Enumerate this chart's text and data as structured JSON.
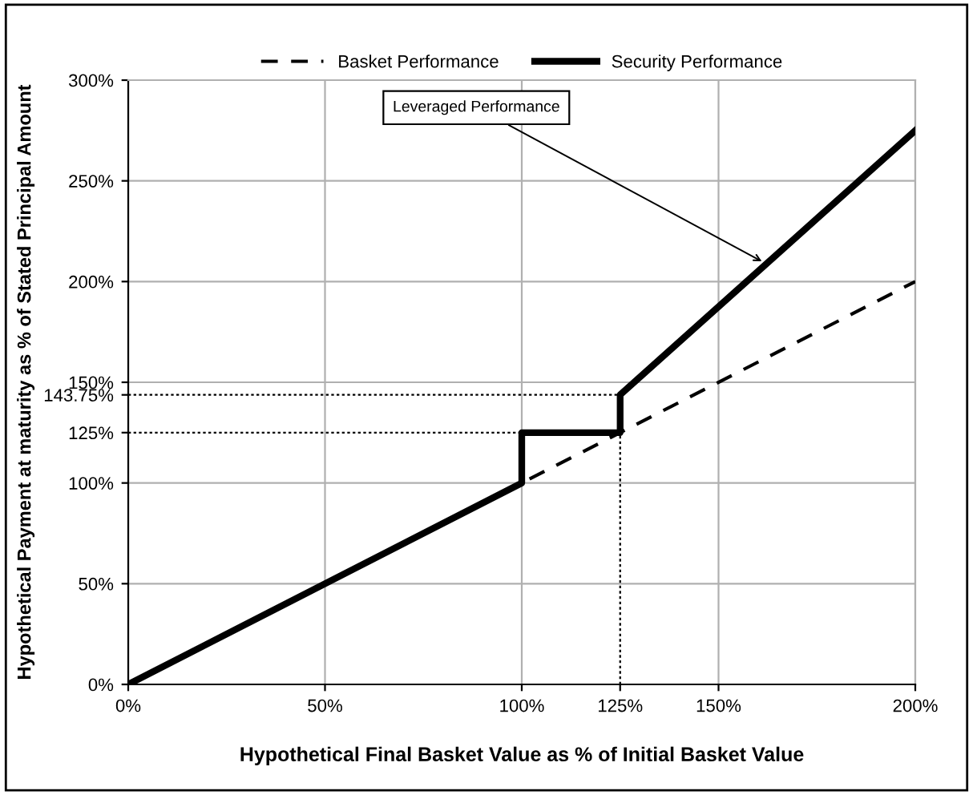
{
  "chart_data": {
    "type": "line",
    "xlabel": "Hypothetical Final Basket Value as % of Initial Basket Value",
    "ylabel": "Hypothetical Payment at maturity as % of Stated Principal Amount",
    "series": [
      {
        "name": "Basket Performance",
        "color": "#000000",
        "line_style": "dashed",
        "x": [
          0,
          200
        ],
        "values": [
          0,
          200
        ]
      },
      {
        "name": "Security Performance",
        "color": "#000000",
        "line_style": "solid",
        "x": [
          0,
          100,
          100,
          125,
          125,
          200
        ],
        "values": [
          0,
          100,
          125,
          125,
          143.75,
          275
        ]
      },
      {
        "color": "#000000",
        "line_style": "dotted",
        "x": [
          0,
          125
        ],
        "values": [
          143.75,
          143.75
        ]
      },
      {
        "color": "#000000",
        "line_style": "dotted",
        "x": [
          0,
          125
        ],
        "values": [
          125,
          125
        ]
      },
      {
        "color": "#000000",
        "line_style": "dotted",
        "x": [
          125,
          125
        ],
        "values": [
          0,
          143.75
        ]
      }
    ],
    "xlim": [
      0,
      200
    ],
    "ylim": [
      0,
      300
    ],
    "xticks": [
      {
        "value": 0,
        "label": "0%"
      },
      {
        "value": 50,
        "label": "50%"
      },
      {
        "value": 100,
        "label": "100%"
      },
      {
        "value": 125,
        "label": "125%"
      },
      {
        "value": 150,
        "label": "150%"
      },
      {
        "value": 200,
        "label": "200%"
      }
    ],
    "yticks": [
      {
        "value": 0,
        "label": "0%"
      },
      {
        "value": 50,
        "label": "50%"
      },
      {
        "value": 100,
        "label": "100%"
      },
      {
        "value": 125,
        "label": "125%"
      },
      {
        "value": 143.75,
        "label": "143.75%"
      },
      {
        "value": 150,
        "label": "150%"
      },
      {
        "value": 200,
        "label": "200%"
      },
      {
        "value": 250,
        "label": "250%"
      },
      {
        "value": 300,
        "label": "300%"
      }
    ],
    "annotations": [
      {
        "text": "Leveraged Performance",
        "x": 162,
        "y": 209
      }
    ],
    "grid": true,
    "legend": "top",
    "marker": "none"
  }
}
